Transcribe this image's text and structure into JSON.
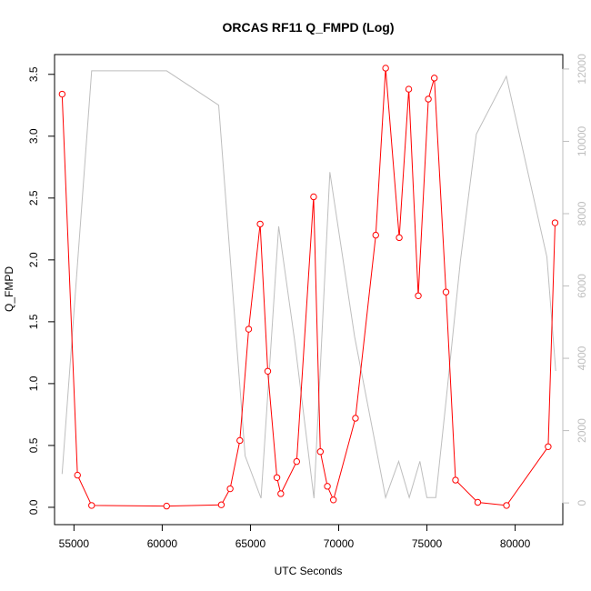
{
  "chart_data": {
    "type": "line",
    "title": "ORCAS RF11 Q_FMPD (Log)",
    "xlabel": "UTC Seconds",
    "ylabel": "Q_FMPD",
    "xlim": [
      53900,
      82700
    ],
    "ylim": [
      -0.14,
      3.66
    ],
    "y2lim": [
      -600,
      12400
    ],
    "x_ticks": [
      55000,
      60000,
      65000,
      70000,
      75000,
      80000
    ],
    "x_tick_labels": [
      "55000",
      "60000",
      "65000",
      "70000",
      "75000",
      "80000"
    ],
    "y_ticks": [
      0.0,
      0.5,
      1.0,
      1.5,
      2.0,
      2.5,
      3.0,
      3.5
    ],
    "y_tick_labels": [
      "0.0",
      "0.5",
      "1.0",
      "1.5",
      "2.0",
      "2.5",
      "3.0",
      "3.5"
    ],
    "y2_ticks": [
      0,
      2000,
      4000,
      6000,
      8000,
      10000,
      12000
    ],
    "y2_tick_labels": [
      "0",
      "2000",
      "4000",
      "6000",
      "8000",
      "10000",
      "12000"
    ],
    "series": [
      {
        "axis": "left",
        "color": "#ff0000",
        "markers": "open-circle",
        "x": [
          54330,
          55200,
          56000,
          60250,
          63350,
          63850,
          64400,
          64900,
          65550,
          65980,
          66500,
          66720,
          67620,
          68580,
          68960,
          69360,
          69700,
          70950,
          72100,
          72660,
          73430,
          73970,
          74510,
          75080,
          75420,
          76080,
          76620,
          77880,
          79510,
          81870,
          82260
        ],
        "y": [
          3.34,
          0.26,
          0.015,
          0.01,
          0.02,
          0.15,
          0.54,
          1.44,
          2.29,
          1.1,
          0.24,
          0.11,
          0.37,
          2.51,
          0.45,
          0.17,
          0.06,
          0.72,
          2.2,
          3.55,
          2.18,
          3.38,
          1.71,
          3.3,
          3.47,
          1.74,
          0.22,
          0.04,
          0.015,
          0.49,
          2.3
        ]
      },
      {
        "axis": "right",
        "color": "#bebebe",
        "markers": "none",
        "x": [
          54330,
          56000,
          60250,
          63200,
          64700,
          65600,
          66600,
          67500,
          68600,
          69500,
          70900,
          72660,
          73400,
          74000,
          74600,
          75000,
          75500,
          76100,
          76900,
          77800,
          79500,
          81800,
          82300
        ],
        "y": [
          800,
          11950,
          11950,
          11000,
          1300,
          130,
          7650,
          4500,
          130,
          9150,
          4600,
          150,
          1150,
          150,
          1150,
          150,
          150,
          2900,
          6700,
          10200,
          11800,
          6800,
          3650
        ]
      }
    ],
    "grid": false,
    "legend": "none"
  }
}
